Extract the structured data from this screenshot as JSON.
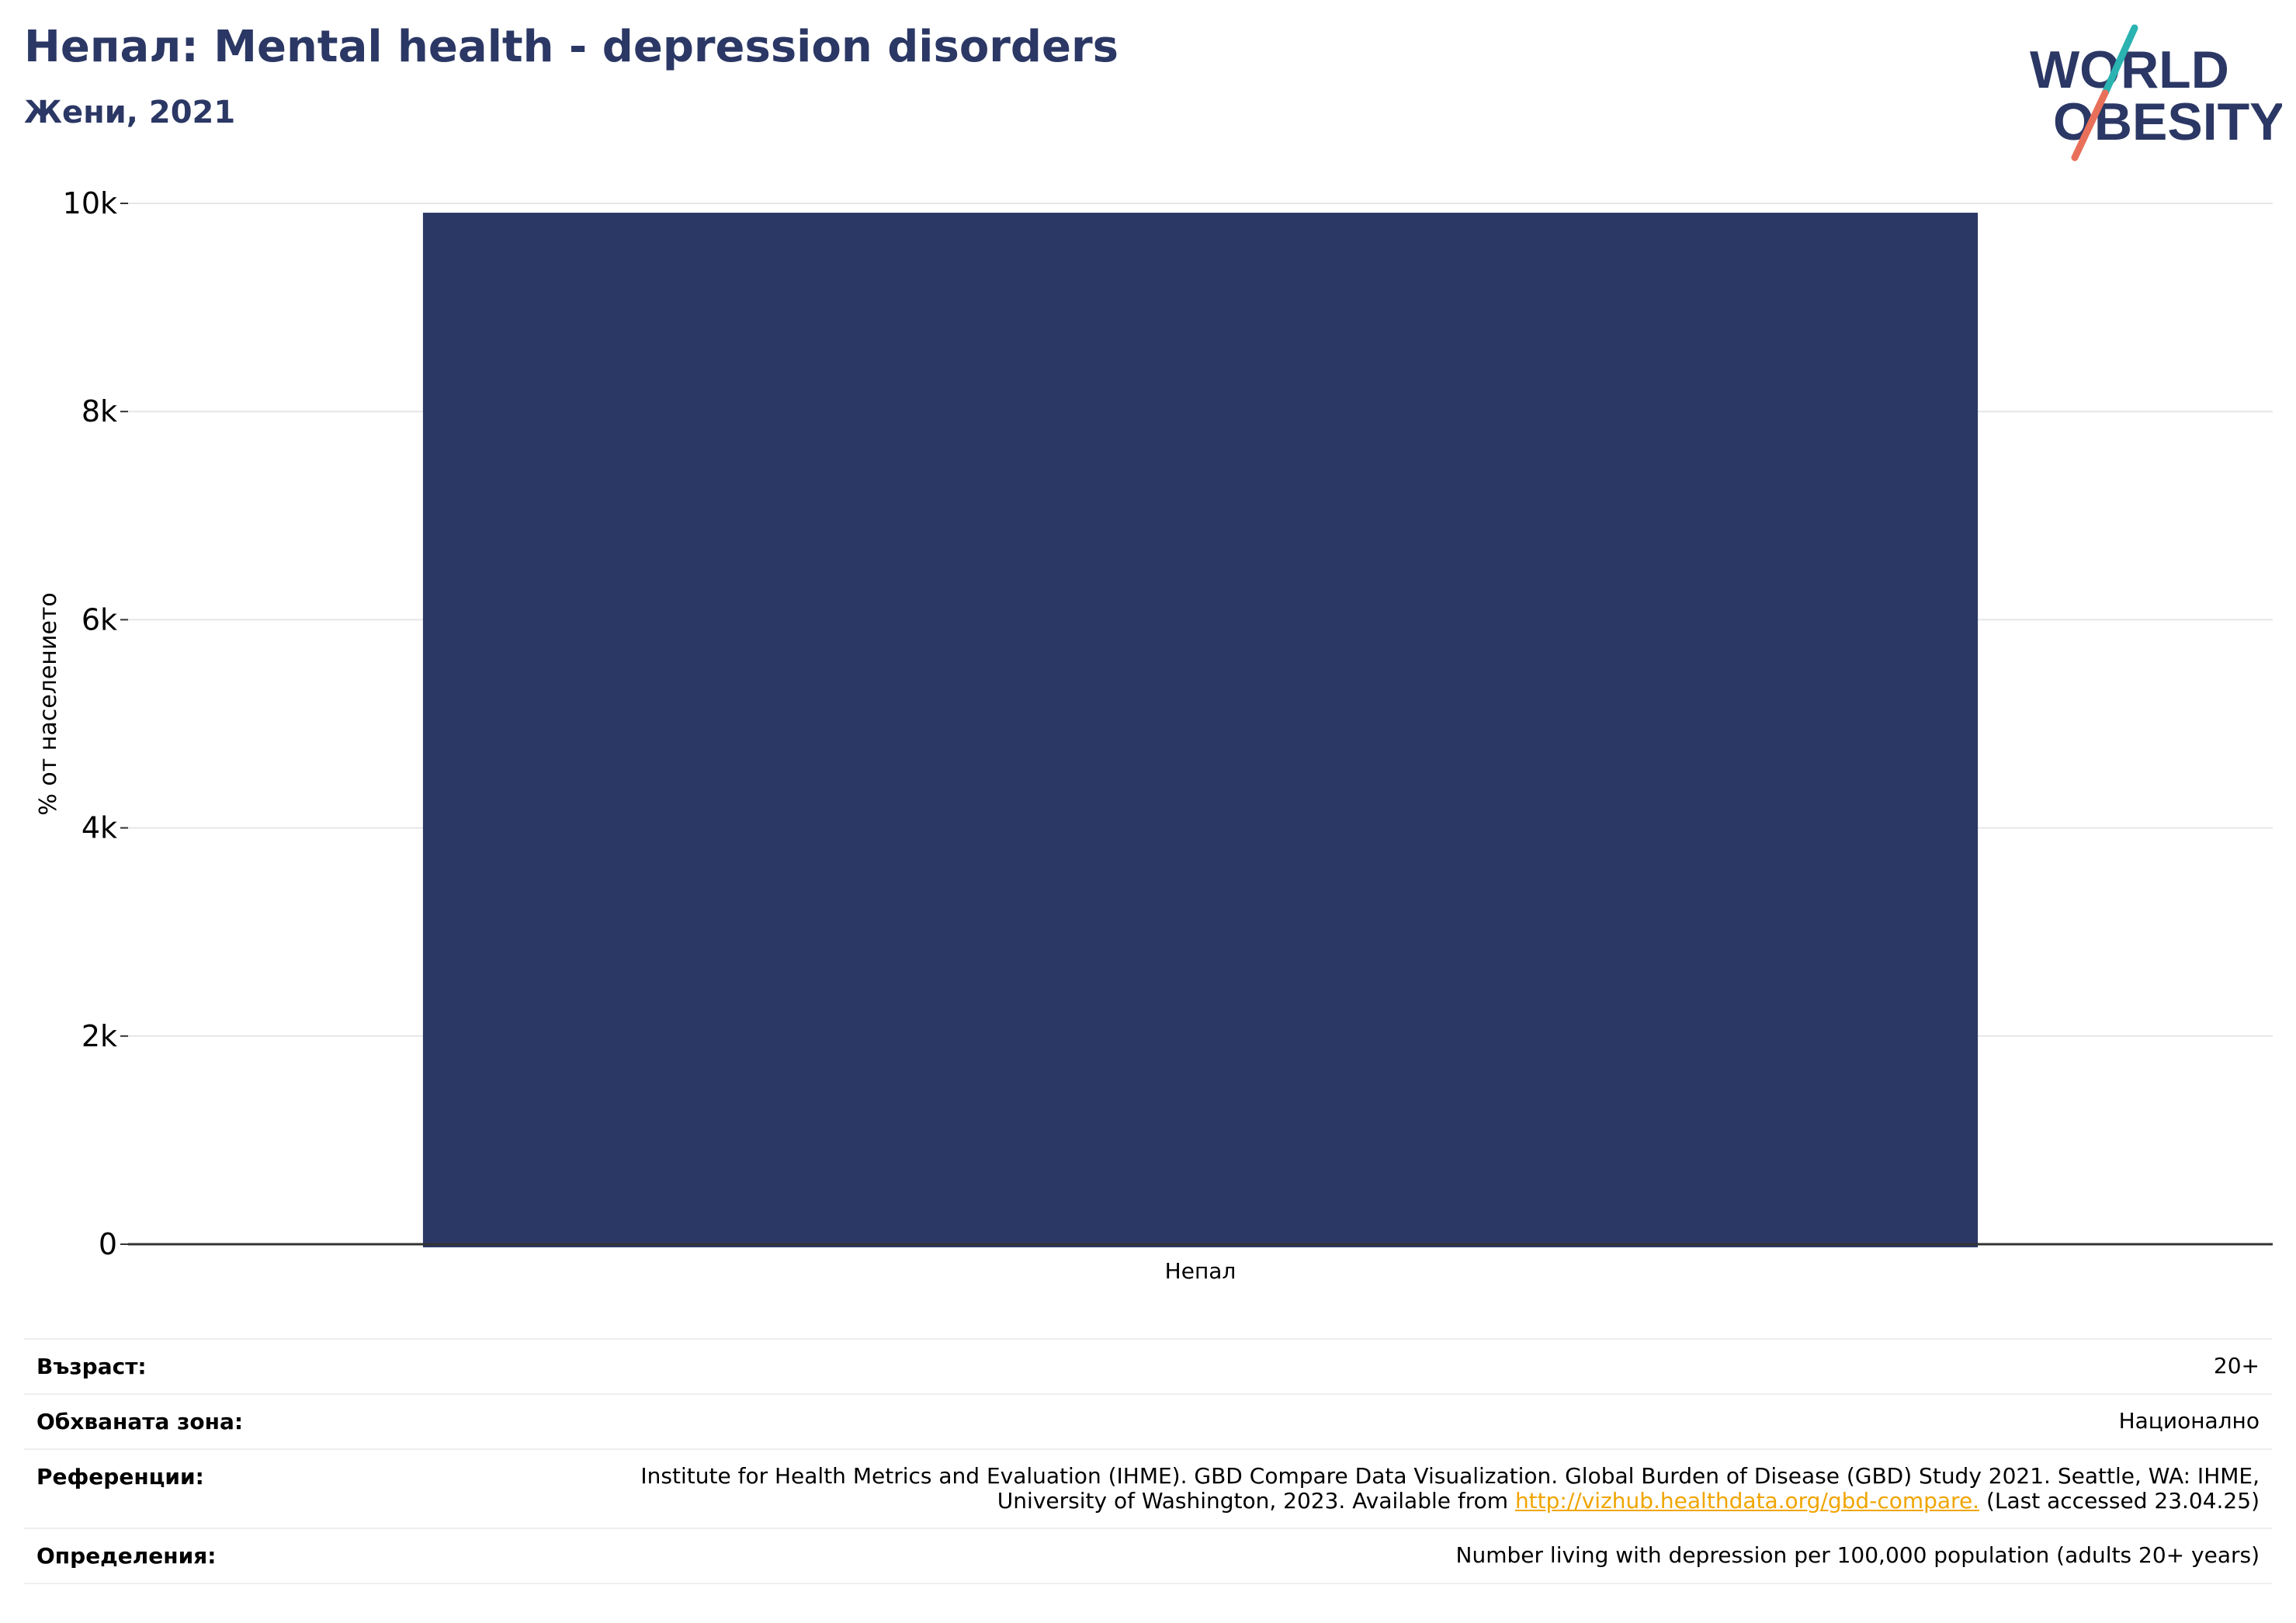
{
  "header": {
    "title": "Непал: Mental health - depression disorders",
    "subtitle": "Жени, 2021"
  },
  "logo": {
    "line1": "WORLD",
    "line2": "OBESITY",
    "colors": {
      "text": "#2b3764",
      "slash_top": "#2ab3b1",
      "slash_bottom": "#e8705a"
    }
  },
  "chart_data": {
    "type": "bar",
    "title": "Непал: Mental health - depression disorders",
    "subtitle": "Жени, 2021",
    "categories": [
      "Непал"
    ],
    "values": [
      9910
    ],
    "ylabel": "% от населението",
    "xlabel": "",
    "ylim": [
      0,
      10000
    ],
    "yticks": [
      0,
      2000,
      4000,
      6000,
      8000,
      10000
    ],
    "ytick_labels": [
      "0",
      "2k",
      "4k",
      "6k",
      "8k",
      "10k"
    ],
    "grid": true,
    "legend": "none",
    "colors": {
      "bar": "#2b3764",
      "grid": "#e6e6e6",
      "axis": "#333333"
    }
  },
  "footer": {
    "rows": [
      {
        "label": "Възраст:",
        "value": "20+"
      },
      {
        "label": "Обхваната зона:",
        "value": "Национално"
      },
      {
        "label": "Референции:",
        "value_before": "Institute for Health Metrics and Evaluation (IHME). GBD Compare Data Visualization. Global Burden of Disease (GBD) Study 2021. Seattle, WA: IHME, University of Washington, 2023. Available from ",
        "link": "http://vizhub.healthdata.org/gbd-compare.",
        "value_after": " (Last accessed 23.04.25)"
      },
      {
        "label": "Определения:",
        "value": "Number living with depression per 100,000 population (adults 20+ years)"
      }
    ],
    "link_color": "#f0a500"
  }
}
